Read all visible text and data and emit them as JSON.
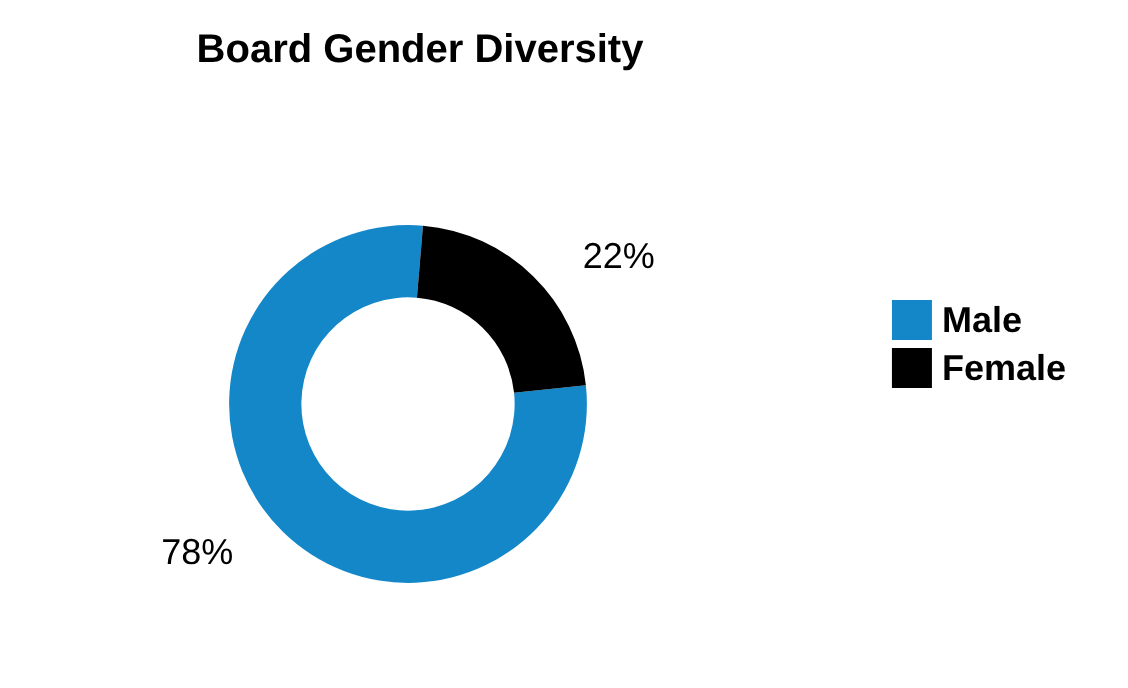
{
  "chart_data": {
    "type": "donut",
    "title": "Board Gender Diversity",
    "categories": [
      "Male",
      "Female"
    ],
    "values": [
      78,
      22
    ],
    "colors": [
      "#1487c9",
      "#000000"
    ],
    "legend": "right",
    "value_labels": [
      "78%",
      "22%"
    ]
  }
}
